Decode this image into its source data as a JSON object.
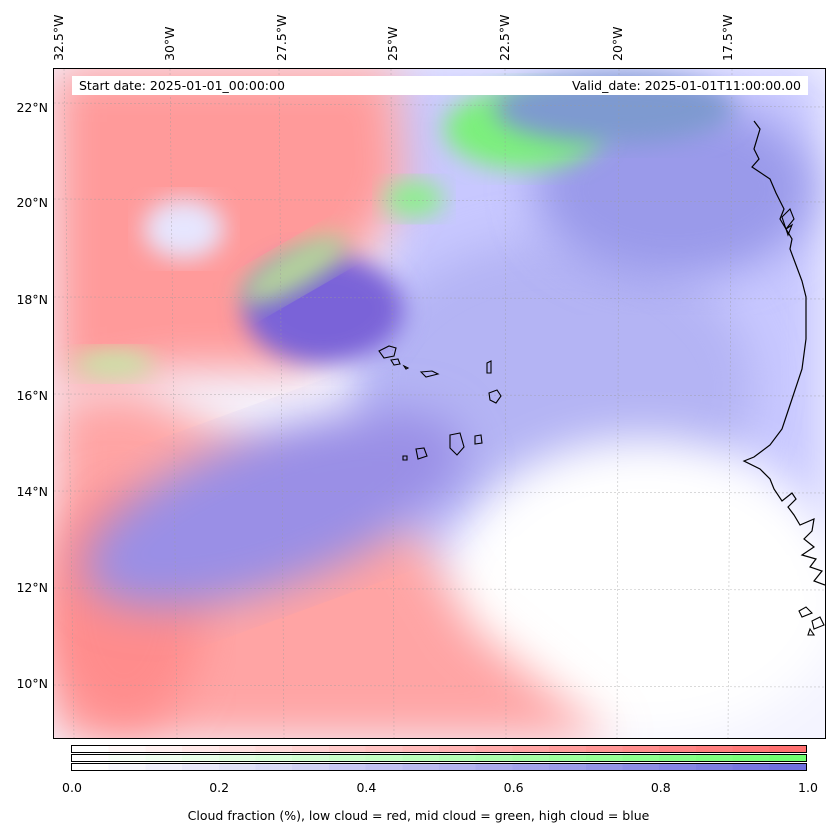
{
  "map": {
    "start_date": "Start date: 2025-01-01_00:00:00",
    "valid_date": "Valid_date: 2025-01-01T11:00:00.00",
    "lon_ticks": [
      "32.5°W",
      "30°W",
      "27.5°W",
      "25°W",
      "22.5°W",
      "20°W",
      "17.5°W"
    ],
    "lat_ticks": [
      "22°N",
      "20°N",
      "18°N",
      "16°N",
      "14°N",
      "12°N",
      "10°N"
    ],
    "layers": [
      {
        "name": "low cloud",
        "color": "#ff6e6e"
      },
      {
        "name": "mid cloud",
        "color": "#6eff6e"
      },
      {
        "name": "high cloud",
        "color": "#6e6eff"
      }
    ],
    "features": [
      "cape-verde-islands",
      "west-africa-coastline"
    ]
  },
  "colorbar": {
    "ticks": [
      "0.0",
      "0.2",
      "0.4",
      "0.6",
      "0.8",
      "1.0"
    ],
    "label": "Cloud fraction (%), low cloud = red, mid cloud = green, high cloud = blue",
    "colors": {
      "low": "#ff7070",
      "mid": "#70ff70",
      "high": "#7070e0"
    }
  }
}
